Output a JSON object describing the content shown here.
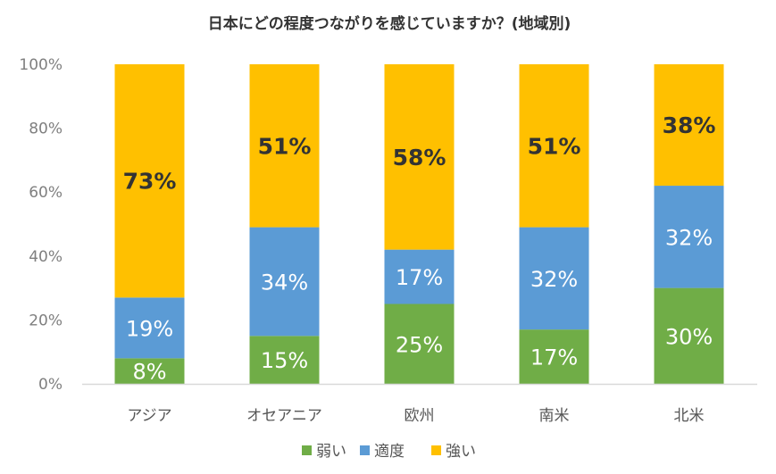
{
  "chart_data": {
    "type": "bar",
    "stacked": true,
    "title": "日本にどの程度つながりを感じていますか？(地域別)",
    "categories": [
      "アジア",
      "オセアニア",
      "欧州",
      "南米",
      "北米"
    ],
    "series": [
      {
        "name": "弱い",
        "values": [
          8,
          15,
          25,
          17,
          30
        ],
        "labels": [
          "8%",
          "15%",
          "25%",
          "17%",
          "30%"
        ],
        "color": "#70ad47"
      },
      {
        "name": "適度",
        "values": [
          19,
          34,
          17,
          32,
          32
        ],
        "labels": [
          "19%",
          "34%",
          "17%",
          "32%",
          "32%"
        ],
        "color": "#5b9bd5"
      },
      {
        "name": "強い",
        "values": [
          73,
          51,
          58,
          51,
          38
        ],
        "labels": [
          "73%",
          "51%",
          "58%",
          "51%",
          "38%"
        ],
        "color": "#ffc000"
      }
    ],
    "ylim": [
      0,
      100
    ],
    "yticks": [
      0,
      20,
      40,
      60,
      80,
      100
    ],
    "ytick_labels": [
      "0%",
      "20%",
      "40%",
      "60%",
      "80%",
      "100%"
    ],
    "xlabel": "",
    "ylabel": "",
    "grid": false,
    "legend_position": "bottom"
  }
}
